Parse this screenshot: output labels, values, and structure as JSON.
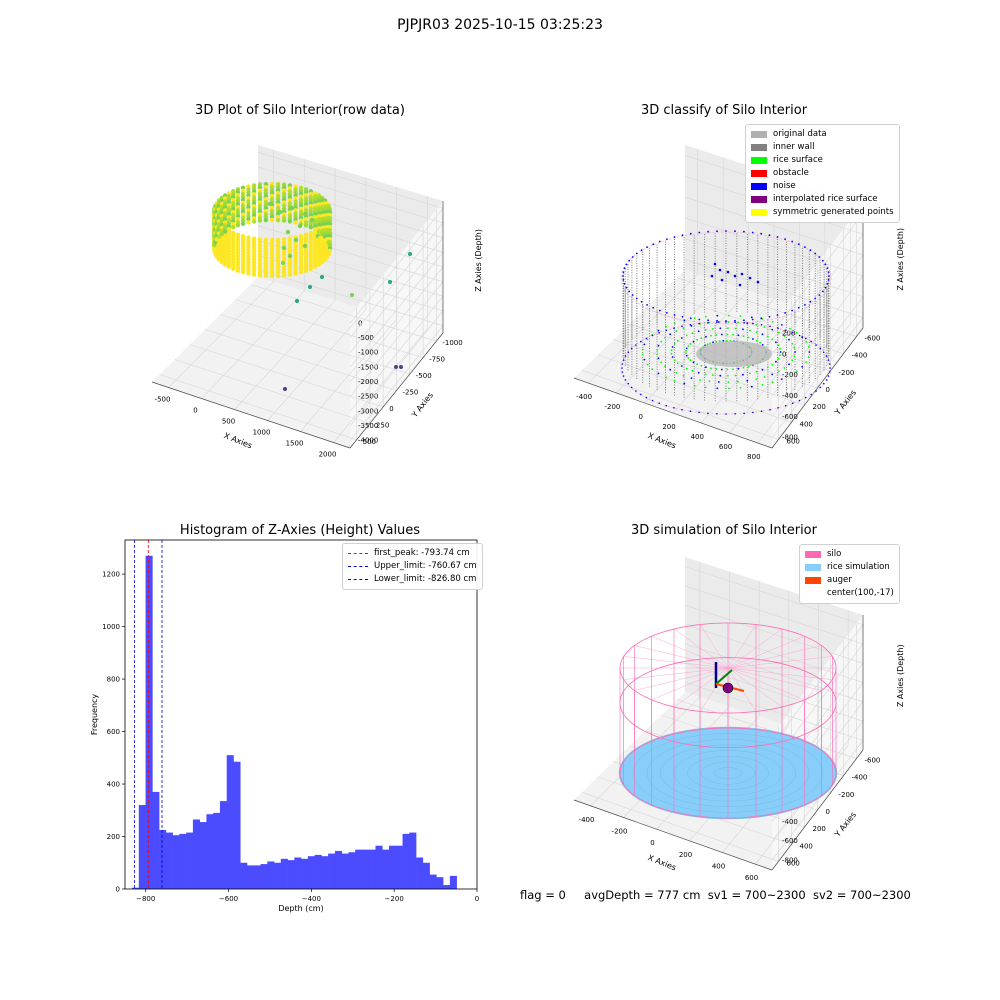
{
  "title": "PJPJR03 2025-10-15 03:25:23",
  "footer": {
    "flag": "flag = 0",
    "avg_depth": "avgDepth = 777 cm",
    "sv1": "sv1 = 700~2300",
    "sv2": "sv2 = 700~2300"
  },
  "chart_data": [
    {
      "type": "scatter",
      "title": "3D Plot of Silo Interior(row data)",
      "xlabel": "X Axies",
      "ylabel": "Y Axies",
      "zlabel": "Z Axies (Depth)",
      "x_ticks": [
        "-500",
        "0",
        "500",
        "1000",
        "1500",
        "2000"
      ],
      "y_ticks": [
        "-1000",
        "-750",
        "-500",
        "-250",
        "0",
        "250",
        "500"
      ],
      "z_ticks": [
        "0",
        "-500",
        "-1000",
        "-1500",
        "-2000",
        "-2500",
        "-3000",
        "-3500",
        "-4000"
      ],
      "colors": {
        "high": "#fde725",
        "mid": "#7ad151",
        "low": "#22a884",
        "outlier_purple": "#5c3a8a"
      }
    },
    {
      "type": "scatter",
      "title": "3D classify of Silo Interior",
      "xlabel": "X Axies",
      "ylabel": "Y Axies",
      "zlabel": "Z Axies (Depth)",
      "x_ticks": [
        "-400",
        "-200",
        "0",
        "200",
        "400",
        "600",
        "800"
      ],
      "y_ticks": [
        "-600",
        "-400",
        "-200",
        "0",
        "200",
        "400",
        "600"
      ],
      "z_ticks": [
        "200",
        "0",
        "-200",
        "-400",
        "-600",
        "-800"
      ],
      "legend": [
        {
          "label": "original data",
          "color": "#b0b0b0"
        },
        {
          "label": "inner wall",
          "color": "#808080"
        },
        {
          "label": "rice surface",
          "color": "#00ff00"
        },
        {
          "label": "obstacle",
          "color": "#ff0000"
        },
        {
          "label": "noise",
          "color": "#0000ff"
        },
        {
          "label": "interpolated rice surface",
          "color": "#800080"
        },
        {
          "label": "symmetric generated points",
          "color": "#ffff00"
        }
      ],
      "legend_position": "top-right"
    },
    {
      "type": "bar",
      "title": "Histogram of Z-Axies (Height) Values",
      "xlabel": "Depth (cm)",
      "ylabel": "Frequency",
      "xlim": [
        -850,
        0
      ],
      "ylim": [
        0,
        1330
      ],
      "x_ticks": [
        -800,
        -600,
        -400,
        -200,
        0
      ],
      "y_ticks": [
        0,
        200,
        400,
        600,
        800,
        1000,
        1200
      ],
      "bin_start": -833,
      "bin_width": 16.33,
      "values": [
        5,
        320,
        1270,
        370,
        225,
        215,
        205,
        210,
        215,
        265,
        255,
        285,
        290,
        335,
        510,
        485,
        100,
        90,
        90,
        95,
        105,
        100,
        115,
        110,
        120,
        115,
        125,
        130,
        125,
        135,
        145,
        135,
        140,
        150,
        150,
        150,
        165,
        150,
        165,
        165,
        210,
        215,
        120,
        100,
        55,
        45,
        15,
        50
      ],
      "bar_color": "#4b4bff",
      "vlines": [
        {
          "value": -793.74,
          "label": "first_peak: -793.74 cm",
          "color": "#ff0000"
        },
        {
          "value": -760.67,
          "label": "Upper_limit: -760.67 cm",
          "color": "#0000cc"
        },
        {
          "value": -826.8,
          "label": "Lower_limit: -826.80 cm",
          "color": "#0000cc"
        }
      ],
      "legend_position": "top-right"
    },
    {
      "type": "scatter",
      "title": "3D simulation of Silo Interior",
      "xlabel": "X Axies",
      "ylabel": "Y Axies",
      "zlabel": "Z Axies (Depth)",
      "x_ticks": [
        "-400",
        "-200",
        "0",
        "200",
        "400",
        "600"
      ],
      "y_ticks": [
        "-600",
        "-400",
        "-200",
        "0",
        "200",
        "400",
        "600"
      ],
      "z_ticks": [
        "400",
        "200",
        "0",
        "-200",
        "-400",
        "-600",
        "-800"
      ],
      "legend": [
        {
          "label": "silo",
          "color": "#ff69b4",
          "marker": "patch"
        },
        {
          "label": "rice simulation",
          "color": "#87cefa",
          "marker": "patch"
        },
        {
          "label": "auger",
          "color": "#ff4500",
          "marker": "patch"
        },
        {
          "label": "center(100,-17)",
          "color": "",
          "marker": "none"
        }
      ],
      "legend_position": "top-right"
    }
  ]
}
